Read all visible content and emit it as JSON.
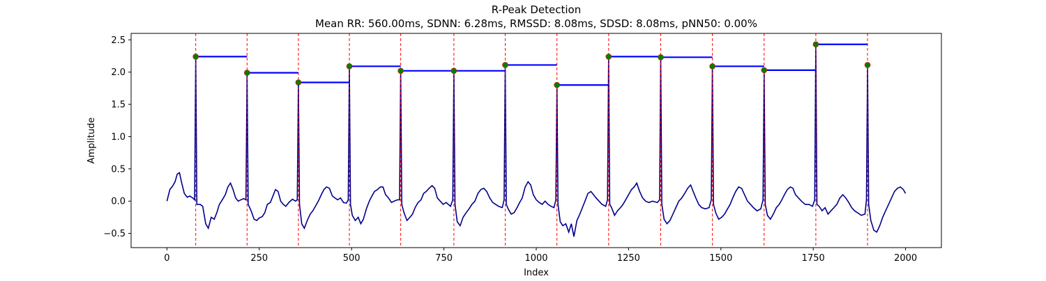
{
  "chart_data": {
    "type": "line",
    "title": "R-Peak Detection",
    "subtitle": "Mean RR: 560.00ms, SDNN: 6.28ms, RMSSD: 8.08ms, SDSD: 8.08ms, pNN50: 0.00%",
    "xlabel": "Index",
    "ylabel": "Amplitude",
    "xlim": [
      -97,
      2097
    ],
    "ylim": [
      -0.72,
      2.6
    ],
    "xticks": [
      0,
      250,
      500,
      750,
      1000,
      1250,
      1500,
      1750,
      2000
    ],
    "yticks": [
      -0.5,
      0.0,
      0.5,
      1.0,
      1.5,
      2.0,
      2.5
    ],
    "grid": false,
    "colors": {
      "signal": "#00008b",
      "peak_marker": "#008000",
      "peak_marker_edge": "#ff0000",
      "peak_line": "#ff0000",
      "rr_segment": "#0000ff"
    },
    "peaks": [
      {
        "x": 78,
        "y": 2.24
      },
      {
        "x": 217,
        "y": 1.99
      },
      {
        "x": 356,
        "y": 1.84
      },
      {
        "x": 494,
        "y": 2.09
      },
      {
        "x": 633,
        "y": 2.02
      },
      {
        "x": 777,
        "y": 2.02
      },
      {
        "x": 916,
        "y": 2.11
      },
      {
        "x": 1056,
        "y": 1.8
      },
      {
        "x": 1196,
        "y": 2.24
      },
      {
        "x": 1337,
        "y": 2.23
      },
      {
        "x": 1477,
        "y": 2.09
      },
      {
        "x": 1617,
        "y": 2.03
      },
      {
        "x": 1757,
        "y": 2.43
      },
      {
        "x": 1897,
        "y": 2.11
      }
    ],
    "baseline": [
      [
        0,
        0.0
      ],
      [
        8,
        0.18
      ],
      [
        15,
        0.23
      ],
      [
        22,
        0.3
      ],
      [
        28,
        0.42
      ],
      [
        34,
        0.44
      ],
      [
        40,
        0.28
      ],
      [
        47,
        0.12
      ],
      [
        55,
        0.06
      ],
      [
        62,
        0.08
      ],
      [
        70,
        0.05
      ],
      [
        90,
        -0.05
      ],
      [
        97,
        -0.08
      ],
      [
        105,
        -0.35
      ],
      [
        112,
        -0.42
      ],
      [
        120,
        -0.25
      ],
      [
        128,
        -0.28
      ],
      [
        135,
        -0.18
      ],
      [
        142,
        -0.05
      ],
      [
        150,
        0.02
      ],
      [
        158,
        0.1
      ],
      [
        165,
        0.22
      ],
      [
        172,
        0.28
      ],
      [
        179,
        0.18
      ],
      [
        186,
        0.05
      ],
      [
        193,
        0.0
      ],
      [
        200,
        0.02
      ],
      [
        208,
        0.04
      ],
      [
        228,
        -0.15
      ],
      [
        236,
        -0.28
      ],
      [
        243,
        -0.3
      ],
      [
        250,
        -0.26
      ],
      [
        258,
        -0.24
      ],
      [
        265,
        -0.18
      ],
      [
        272,
        -0.05
      ],
      [
        280,
        -0.02
      ],
      [
        287,
        0.08
      ],
      [
        294,
        0.18
      ],
      [
        301,
        0.15
      ],
      [
        308,
        0.0
      ],
      [
        315,
        -0.05
      ],
      [
        322,
        -0.08
      ],
      [
        330,
        -0.02
      ],
      [
        340,
        0.03
      ],
      [
        348,
        0.0
      ],
      [
        365,
        -0.35
      ],
      [
        372,
        -0.42
      ],
      [
        380,
        -0.3
      ],
      [
        388,
        -0.2
      ],
      [
        395,
        -0.15
      ],
      [
        402,
        -0.08
      ],
      [
        410,
        0.0
      ],
      [
        418,
        0.1
      ],
      [
        425,
        0.18
      ],
      [
        432,
        0.22
      ],
      [
        440,
        0.2
      ],
      [
        448,
        0.08
      ],
      [
        455,
        0.05
      ],
      [
        462,
        0.02
      ],
      [
        470,
        0.05
      ],
      [
        478,
        -0.02
      ],
      [
        486,
        -0.03
      ],
      [
        502,
        -0.22
      ],
      [
        510,
        -0.3
      ],
      [
        518,
        -0.25
      ],
      [
        525,
        -0.35
      ],
      [
        532,
        -0.28
      ],
      [
        540,
        -0.12
      ],
      [
        548,
        0.0
      ],
      [
        555,
        0.08
      ],
      [
        562,
        0.15
      ],
      [
        570,
        0.18
      ],
      [
        578,
        0.22
      ],
      [
        585,
        0.22
      ],
      [
        592,
        0.1
      ],
      [
        600,
        0.05
      ],
      [
        608,
        -0.02
      ],
      [
        615,
        0.0
      ],
      [
        624,
        0.02
      ],
      [
        642,
        -0.18
      ],
      [
        650,
        -0.3
      ],
      [
        658,
        -0.25
      ],
      [
        665,
        -0.2
      ],
      [
        672,
        -0.1
      ],
      [
        680,
        -0.02
      ],
      [
        688,
        0.02
      ],
      [
        695,
        0.12
      ],
      [
        702,
        0.15
      ],
      [
        710,
        0.2
      ],
      [
        718,
        0.24
      ],
      [
        725,
        0.2
      ],
      [
        732,
        0.05
      ],
      [
        740,
        0.0
      ],
      [
        748,
        -0.05
      ],
      [
        756,
        -0.02
      ],
      [
        768,
        -0.08
      ],
      [
        786,
        -0.32
      ],
      [
        794,
        -0.38
      ],
      [
        802,
        -0.25
      ],
      [
        810,
        -0.18
      ],
      [
        818,
        -0.12
      ],
      [
        826,
        -0.05
      ],
      [
        834,
        0.0
      ],
      [
        842,
        0.12
      ],
      [
        850,
        0.18
      ],
      [
        858,
        0.2
      ],
      [
        866,
        0.15
      ],
      [
        874,
        0.05
      ],
      [
        882,
        -0.02
      ],
      [
        890,
        -0.05
      ],
      [
        898,
        -0.08
      ],
      [
        908,
        -0.1
      ],
      [
        924,
        -0.12
      ],
      [
        932,
        -0.2
      ],
      [
        940,
        -0.18
      ],
      [
        948,
        -0.1
      ],
      [
        955,
        -0.02
      ],
      [
        962,
        0.05
      ],
      [
        970,
        0.22
      ],
      [
        978,
        0.3
      ],
      [
        985,
        0.25
      ],
      [
        992,
        0.1
      ],
      [
        1000,
        0.02
      ],
      [
        1008,
        -0.02
      ],
      [
        1016,
        -0.05
      ],
      [
        1024,
        0.0
      ],
      [
        1032,
        -0.05
      ],
      [
        1040,
        -0.08
      ],
      [
        1048,
        -0.1
      ],
      [
        1065,
        -0.32
      ],
      [
        1072,
        -0.38
      ],
      [
        1080,
        -0.35
      ],
      [
        1088,
        -0.48
      ],
      [
        1095,
        -0.35
      ],
      [
        1102,
        -0.55
      ],
      [
        1110,
        -0.3
      ],
      [
        1118,
        -0.2
      ],
      [
        1125,
        -0.1
      ],
      [
        1132,
        0.0
      ],
      [
        1140,
        0.12
      ],
      [
        1148,
        0.15
      ],
      [
        1155,
        0.1
      ],
      [
        1162,
        0.05
      ],
      [
        1170,
        0.0
      ],
      [
        1178,
        -0.05
      ],
      [
        1188,
        -0.08
      ],
      [
        1204,
        -0.1
      ],
      [
        1212,
        -0.22
      ],
      [
        1220,
        -0.15
      ],
      [
        1228,
        -0.1
      ],
      [
        1235,
        -0.05
      ],
      [
        1242,
        0.02
      ],
      [
        1250,
        0.1
      ],
      [
        1258,
        0.18
      ],
      [
        1265,
        0.22
      ],
      [
        1272,
        0.28
      ],
      [
        1280,
        0.15
      ],
      [
        1288,
        0.05
      ],
      [
        1296,
        0.0
      ],
      [
        1305,
        -0.02
      ],
      [
        1315,
        0.0
      ],
      [
        1328,
        -0.02
      ],
      [
        1346,
        -0.28
      ],
      [
        1354,
        -0.35
      ],
      [
        1362,
        -0.3
      ],
      [
        1370,
        -0.2
      ],
      [
        1378,
        -0.1
      ],
      [
        1386,
        0.0
      ],
      [
        1394,
        0.05
      ],
      [
        1402,
        0.12
      ],
      [
        1410,
        0.2
      ],
      [
        1418,
        0.25
      ],
      [
        1425,
        0.15
      ],
      [
        1432,
        0.05
      ],
      [
        1440,
        -0.05
      ],
      [
        1448,
        -0.1
      ],
      [
        1458,
        -0.12
      ],
      [
        1468,
        -0.1
      ],
      [
        1486,
        -0.18
      ],
      [
        1494,
        -0.28
      ],
      [
        1502,
        -0.25
      ],
      [
        1510,
        -0.2
      ],
      [
        1518,
        -0.12
      ],
      [
        1525,
        -0.05
      ],
      [
        1532,
        0.05
      ],
      [
        1540,
        0.15
      ],
      [
        1548,
        0.22
      ],
      [
        1556,
        0.2
      ],
      [
        1564,
        0.1
      ],
      [
        1572,
        0.0
      ],
      [
        1580,
        -0.05
      ],
      [
        1588,
        -0.1
      ],
      [
        1598,
        -0.15
      ],
      [
        1608,
        -0.12
      ],
      [
        1626,
        -0.22
      ],
      [
        1634,
        -0.28
      ],
      [
        1642,
        -0.2
      ],
      [
        1650,
        -0.1
      ],
      [
        1658,
        -0.05
      ],
      [
        1665,
        0.02
      ],
      [
        1672,
        0.1
      ],
      [
        1680,
        0.18
      ],
      [
        1688,
        0.22
      ],
      [
        1695,
        0.2
      ],
      [
        1702,
        0.1
      ],
      [
        1710,
        0.05
      ],
      [
        1718,
        0.0
      ],
      [
        1728,
        -0.05
      ],
      [
        1738,
        -0.05
      ],
      [
        1748,
        -0.08
      ],
      [
        1766,
        -0.08
      ],
      [
        1774,
        -0.15
      ],
      [
        1782,
        -0.1
      ],
      [
        1790,
        -0.2
      ],
      [
        1798,
        -0.15
      ],
      [
        1806,
        -0.1
      ],
      [
        1814,
        -0.05
      ],
      [
        1822,
        0.05
      ],
      [
        1830,
        0.1
      ],
      [
        1838,
        0.05
      ],
      [
        1846,
        -0.02
      ],
      [
        1854,
        -0.1
      ],
      [
        1862,
        -0.15
      ],
      [
        1870,
        -0.18
      ],
      [
        1880,
        -0.22
      ],
      [
        1890,
        -0.2
      ],
      [
        1906,
        -0.3
      ],
      [
        1914,
        -0.45
      ],
      [
        1922,
        -0.48
      ],
      [
        1930,
        -0.38
      ],
      [
        1938,
        -0.25
      ],
      [
        1946,
        -0.15
      ],
      [
        1954,
        -0.05
      ],
      [
        1962,
        0.05
      ],
      [
        1970,
        0.15
      ],
      [
        1978,
        0.2
      ],
      [
        1986,
        0.22
      ],
      [
        1994,
        0.18
      ],
      [
        2000,
        0.12
      ]
    ]
  }
}
